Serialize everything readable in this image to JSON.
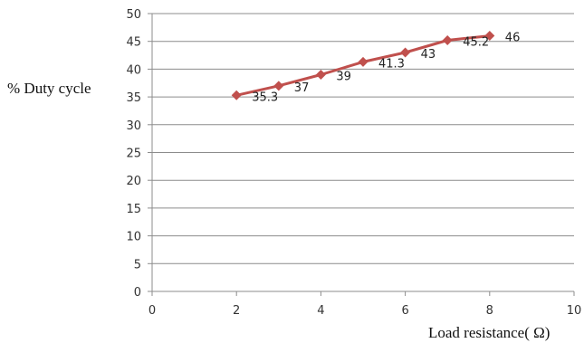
{
  "chart_data": {
    "type": "line",
    "xlabel": "Load  resistance( Ω)",
    "ylabel": "% Duty cycle",
    "xlim": [
      0,
      10
    ],
    "ylim": [
      0,
      50
    ],
    "x_ticks": [
      "0",
      "2",
      "4",
      "6",
      "8",
      "10"
    ],
    "y_ticks": [
      "0",
      "5",
      "10",
      "15",
      "20",
      "25",
      "30",
      "35",
      "40",
      "45",
      "50"
    ],
    "grid": "horizontal",
    "legend": "none",
    "series": [
      {
        "color": "#C0504D",
        "marker": "diamond",
        "x": [
          2,
          3,
          4,
          5,
          6,
          7,
          8
        ],
        "y": [
          35.3,
          37,
          39,
          41.3,
          43,
          45.2,
          46
        ],
        "labels": [
          "35.3",
          "37",
          "39",
          "41.3",
          "43",
          "45.2",
          "46"
        ]
      }
    ]
  }
}
